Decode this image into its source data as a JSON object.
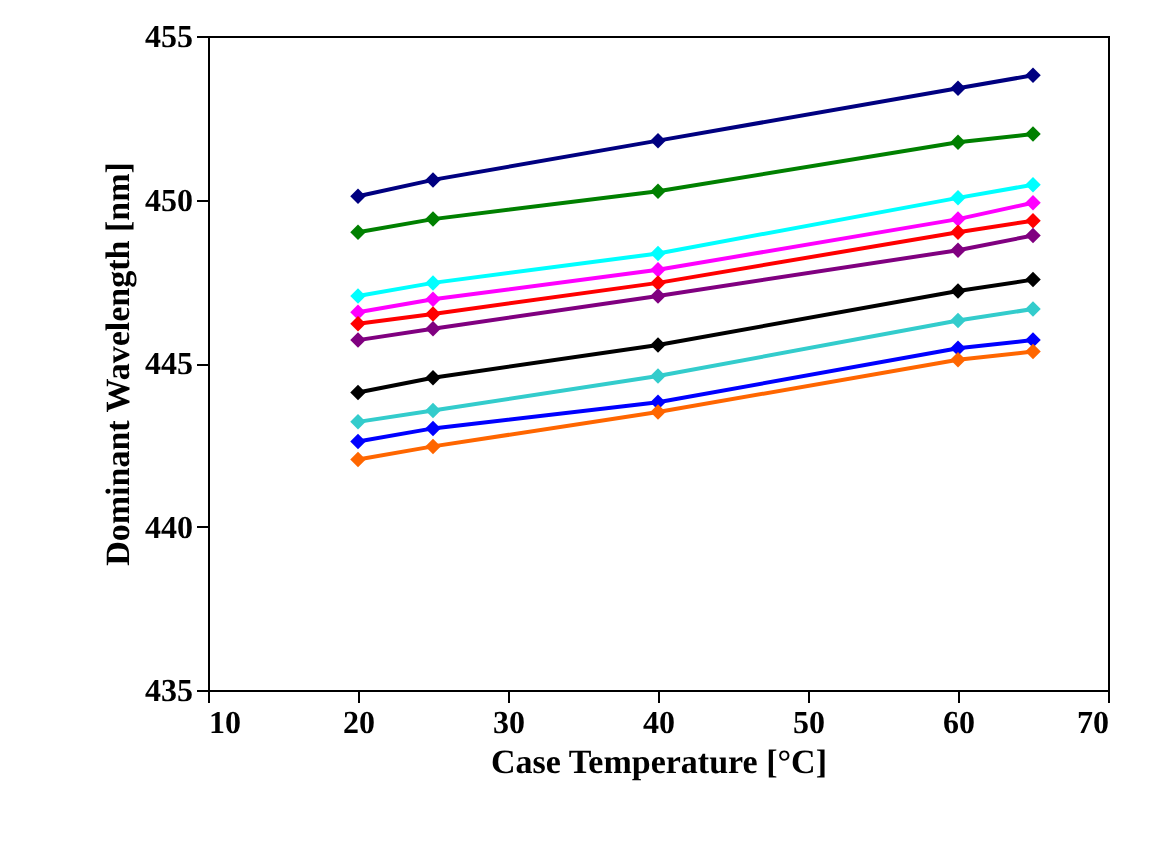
{
  "chart_data": {
    "type": "line",
    "xlabel": "Case Temperature [°C]",
    "ylabel": "Dominant Wavelength [nm]",
    "x": [
      20,
      25,
      40,
      60,
      65
    ],
    "xlim": [
      10,
      70
    ],
    "xticks": [
      10,
      20,
      30,
      40,
      50,
      60,
      70
    ],
    "ylim": [
      435,
      455
    ],
    "yticks": [
      435,
      440,
      445,
      450,
      455
    ],
    "grid": false,
    "legend": false,
    "marker": "diamond",
    "line_style": "solid",
    "series": [
      {
        "color": "#000080",
        "values": [
          450.1,
          450.6,
          451.8,
          453.4,
          453.8
        ]
      },
      {
        "color": "#008000",
        "values": [
          449.0,
          449.4,
          450.25,
          451.75,
          452.0
        ]
      },
      {
        "color": "#00ffff",
        "values": [
          447.05,
          447.45,
          448.35,
          450.05,
          450.45
        ]
      },
      {
        "color": "#ff00ff",
        "values": [
          446.55,
          446.95,
          447.85,
          449.4,
          449.9
        ]
      },
      {
        "color": "#ff0000",
        "values": [
          446.2,
          446.5,
          447.45,
          449.0,
          449.35
        ]
      },
      {
        "color": "#800080",
        "values": [
          445.7,
          446.05,
          447.05,
          448.45,
          448.9
        ]
      },
      {
        "color": "#000000",
        "values": [
          444.1,
          444.55,
          445.55,
          447.2,
          447.55
        ]
      },
      {
        "color": "#33cccc",
        "values": [
          443.2,
          443.55,
          444.6,
          446.3,
          446.65
        ]
      },
      {
        "color": "#0000ff",
        "values": [
          442.6,
          443.0,
          443.8,
          445.45,
          445.7
        ]
      },
      {
        "color": "#ff6600",
        "values": [
          442.05,
          442.45,
          443.5,
          445.1,
          445.35
        ]
      }
    ]
  }
}
